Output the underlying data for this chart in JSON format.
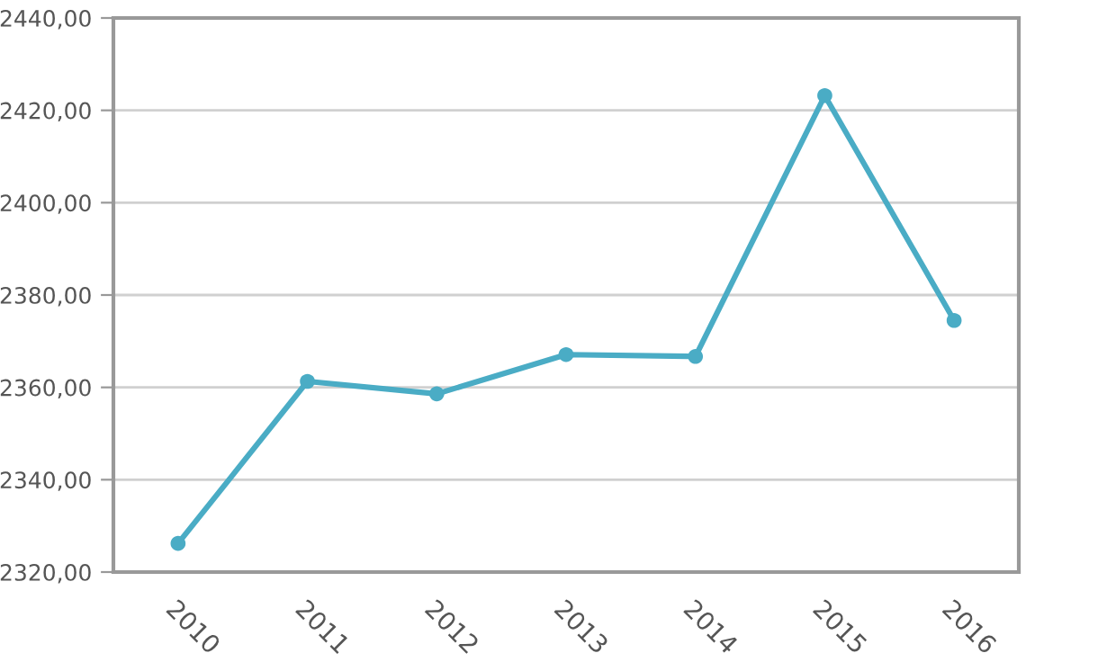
{
  "chart_data": {
    "type": "line",
    "categories": [
      "2010",
      "2011",
      "2012",
      "2013",
      "2014",
      "2015",
      "2016"
    ],
    "series": [
      {
        "color": "#4aacc5",
        "values": [
          2326.2,
          2361.3,
          2358.6,
          2367.1,
          2366.7,
          2423.2,
          2374.5
        ]
      }
    ],
    "ylim": [
      2320,
      2440
    ],
    "yticks": [
      {
        "value": 2320,
        "label": "2320,00"
      },
      {
        "value": 2340,
        "label": "2340,00"
      },
      {
        "value": 2360,
        "label": "2360,00"
      },
      {
        "value": 2380,
        "label": "2380,00"
      },
      {
        "value": 2400,
        "label": "2400,00"
      },
      {
        "value": 2420,
        "label": "2420,00"
      },
      {
        "value": 2440,
        "label": "2440,00"
      }
    ],
    "grid": "y",
    "marker": "circle",
    "line_style": "solid"
  }
}
